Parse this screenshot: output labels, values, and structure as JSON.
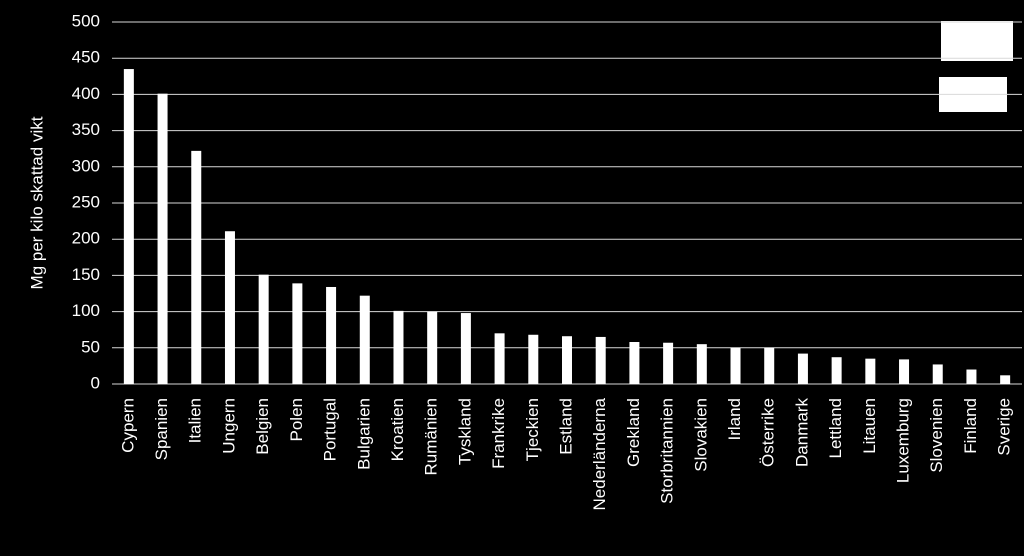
{
  "chart_data": {
    "type": "bar",
    "y_label": "Mg per kilo skattad vikt",
    "categories": [
      "Cypern",
      "Spanien",
      "Italien",
      "Ungern",
      "Belgien",
      "Polen",
      "Portugal",
      "Bulgarien",
      "Kroatien",
      "Rumänien",
      "Tyskland",
      "Frankrike",
      "Tjeckien",
      "Estland",
      "Nederländerna",
      "Grekland",
      "Storbritannien",
      "Slovakien",
      "Irland",
      "Österrike",
      "Danmark",
      "Lettland",
      "Litauen",
      "Luxemburg",
      "Slovenien",
      "Finland",
      "Sverige"
    ],
    "values": [
      435,
      401,
      322,
      211,
      151,
      139,
      134,
      122,
      101,
      100,
      98,
      70,
      68,
      66,
      65,
      58,
      57,
      55,
      50,
      50,
      42,
      37,
      35,
      34,
      27,
      20,
      12
    ],
    "color": "#ffffff",
    "ylim": [
      0,
      500
    ],
    "yticks": [
      0,
      50,
      100,
      150,
      200,
      250,
      300,
      350,
      400,
      450,
      500
    ],
    "grid": true
  }
}
